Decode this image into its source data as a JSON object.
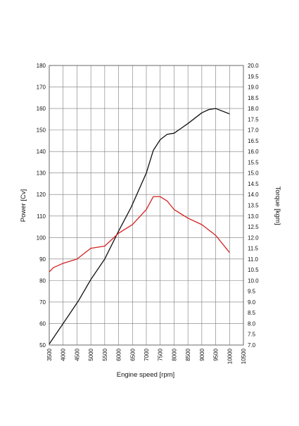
{
  "chart_data": {
    "type": "line",
    "xlabel": "Engine speed [rpm]",
    "ylabel_left": "Power [Cv]",
    "ylabel_right": "Torque [kgm]",
    "xlim": [
      3500,
      10500
    ],
    "x_ticks": [
      "3500",
      "4000",
      "4500",
      "5000",
      "5500",
      "6000",
      "6500",
      "7000",
      "7500",
      "8000",
      "8500",
      "9000",
      "9500",
      "10000",
      "10500"
    ],
    "ylim_left": [
      50,
      180
    ],
    "y_ticks_left": [
      "50",
      "60",
      "70",
      "80",
      "90",
      "100",
      "110",
      "120",
      "130",
      "140",
      "150",
      "160",
      "170",
      "180"
    ],
    "ylim_right": [
      7.0,
      20.0
    ],
    "y_ticks_right": [
      "7.0",
      "7.5",
      "8.0",
      "8.5",
      "9.0",
      "9.5",
      "10.0",
      "10.5",
      "11.0",
      "11.5",
      "12.0",
      "12.5",
      "13.0",
      "13.5",
      "14.0",
      "14.5",
      "15.0",
      "15.5",
      "16.0",
      "16.5",
      "17.0",
      "17.5",
      "18.0",
      "18.5",
      "19.0",
      "19.5",
      "20.0"
    ],
    "grid": true,
    "series": [
      {
        "axis": "left",
        "color": "#111111",
        "x": [
          3500,
          4000,
          4550,
          5000,
          5500,
          6000,
          6450,
          7000,
          7250,
          7500,
          7750,
          8000,
          8500,
          9000,
          9250,
          9500,
          10000
        ],
        "y": [
          50.5,
          60,
          70.5,
          80.5,
          90,
          103,
          114,
          130,
          140.5,
          145.5,
          148,
          148.5,
          153,
          158,
          159.5,
          160,
          157.5
        ]
      },
      {
        "axis": "right",
        "color": "#d42020",
        "x": [
          3500,
          3650,
          4000,
          4500,
          5000,
          5500,
          6000,
          6500,
          7000,
          7250,
          7500,
          7750,
          8000,
          8500,
          9000,
          9500,
          10000
        ],
        "y": [
          10.4,
          10.6,
          10.8,
          11.0,
          11.5,
          11.6,
          12.2,
          12.6,
          13.3,
          13.9,
          13.9,
          13.7,
          13.3,
          12.9,
          12.6,
          12.1,
          11.3
        ]
      }
    ]
  }
}
